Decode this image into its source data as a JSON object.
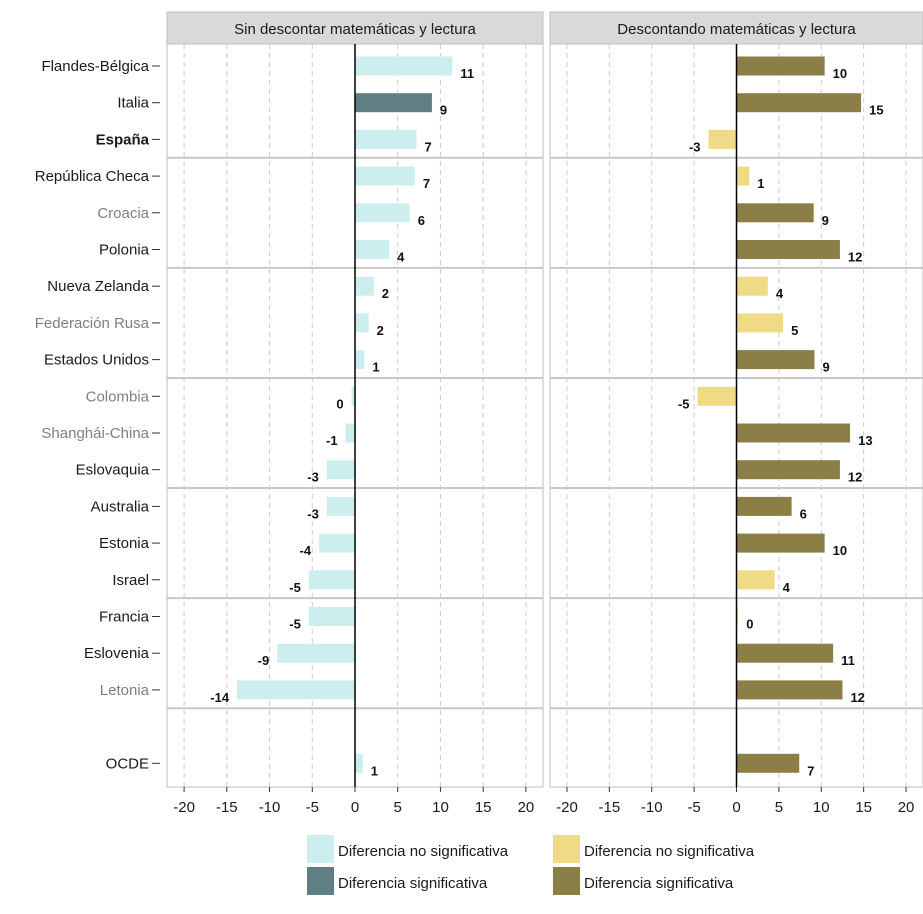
{
  "chart_data": {
    "type": "bar",
    "orientation": "horizontal",
    "categories": [
      {
        "label": "Flandes-Bélgica",
        "style": "normal"
      },
      {
        "label": "Italia",
        "style": "normal"
      },
      {
        "label": "España",
        "style": "bold"
      },
      {
        "label": "República Checa",
        "style": "normal"
      },
      {
        "label": "Croacia",
        "style": "gray"
      },
      {
        "label": "Polonia",
        "style": "normal"
      },
      {
        "label": "Nueva Zelanda",
        "style": "normal"
      },
      {
        "label": "Federación Rusa",
        "style": "gray"
      },
      {
        "label": "Estados Unidos",
        "style": "normal"
      },
      {
        "label": "Colombia",
        "style": "gray"
      },
      {
        "label": "Shanghái-China",
        "style": "gray"
      },
      {
        "label": "Eslovaquia",
        "style": "normal"
      },
      {
        "label": "Australia",
        "style": "normal"
      },
      {
        "label": "Estonia",
        "style": "normal"
      },
      {
        "label": "Israel",
        "style": "normal"
      },
      {
        "label": "Francia",
        "style": "normal"
      },
      {
        "label": "Eslovenia",
        "style": "normal"
      },
      {
        "label": "Letonia",
        "style": "gray"
      },
      {
        "label": "",
        "style": "normal"
      },
      {
        "label": "OCDE",
        "style": "normal"
      }
    ],
    "panels": [
      {
        "title": "Sin descontar matemáticas y lectura",
        "values": [
          11.4,
          9,
          7.2,
          7,
          6.4,
          4,
          2.2,
          1.6,
          1.1,
          -0.4,
          -1.1,
          -3.3,
          -3.3,
          -4.2,
          -5.4,
          -5.4,
          -9.1,
          -13.8,
          null,
          0.9
        ],
        "labels": [
          "11",
          "9",
          "7",
          "7",
          "6",
          "4",
          "2",
          "2",
          "1",
          "0",
          "-1",
          "-3",
          "-3",
          "-4",
          "-5",
          "-5",
          "-9",
          "-14",
          "",
          "1"
        ],
        "significant": [
          false,
          true,
          false,
          false,
          false,
          false,
          false,
          false,
          false,
          false,
          false,
          false,
          false,
          false,
          false,
          false,
          false,
          false,
          false,
          false
        ]
      },
      {
        "title": "Descontando matemáticas y lectura",
        "values": [
          10.4,
          14.7,
          -3.3,
          1.5,
          9.1,
          12.2,
          3.7,
          5.5,
          9.2,
          -4.6,
          13.4,
          12.2,
          6.5,
          10.4,
          4.5,
          0.2,
          11.4,
          12.5,
          null,
          7.4
        ],
        "labels": [
          "10",
          "15",
          "-3",
          "1",
          "9",
          "12",
          "4",
          "5",
          "9",
          "-5",
          "13",
          "12",
          "6",
          "10",
          "4",
          "0",
          "11",
          "12",
          "",
          "7"
        ],
        "significant": [
          true,
          true,
          false,
          false,
          true,
          true,
          false,
          false,
          true,
          false,
          true,
          true,
          true,
          true,
          false,
          false,
          true,
          true,
          false,
          true
        ]
      }
    ],
    "x_ticks": [
      -20,
      -15,
      -10,
      -5,
      0,
      5,
      10,
      15,
      20
    ],
    "xlim": [
      -22,
      22
    ],
    "grid": true,
    "legend": {
      "position": "bottom",
      "columns": [
        [
          {
            "label": "Diferencia no significativa",
            "color": "#cdeeee"
          },
          {
            "label": "Diferencia significativa",
            "color": "#607f85"
          }
        ],
        [
          {
            "label": "Diferencia no significativa",
            "color": "#efdb85"
          },
          {
            "label": "Diferencia significativa",
            "color": "#8b7f47"
          }
        ]
      ]
    },
    "colors": {
      "panel1_nonsig": "#cdeeee",
      "panel1_sig": "#607f85",
      "panel2_nonsig": "#efdb85",
      "panel2_sig": "#8b7f47",
      "strip_bg": "#d9d9d9",
      "grid": "#cccccc",
      "country_gray": "#7f7f7f"
    }
  }
}
